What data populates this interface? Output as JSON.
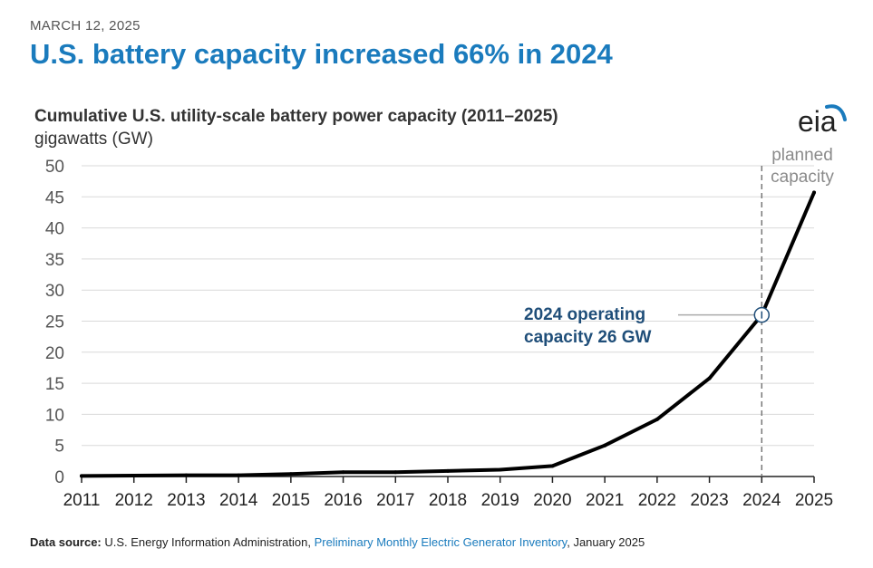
{
  "header": {
    "date": "MARCH 12, 2025",
    "headline": "U.S. battery capacity increased 66% in 2024"
  },
  "logo": {
    "text": "eia",
    "color": "#1a7bbd"
  },
  "chart_data": {
    "type": "line",
    "title": "Cumulative U.S. utility-scale battery power capacity (2011–2025)",
    "ylabel": "gigawatts (GW)",
    "xlabel": "",
    "x": [
      2011,
      2012,
      2013,
      2014,
      2015,
      2016,
      2017,
      2018,
      2019,
      2020,
      2021,
      2022,
      2023,
      2024,
      2025
    ],
    "series": [
      {
        "name": "Cumulative battery capacity",
        "values": [
          0.1,
          0.15,
          0.2,
          0.2,
          0.4,
          0.7,
          0.7,
          0.9,
          1.1,
          1.7,
          5,
          9.2,
          15.8,
          26,
          45.7
        ],
        "color": "#000000"
      }
    ],
    "ylim": [
      0,
      50
    ],
    "yticks": [
      0,
      5,
      10,
      15,
      20,
      25,
      30,
      35,
      40,
      45,
      50
    ],
    "grid": true,
    "divider": {
      "x": 2024,
      "label_line1": "planned",
      "label_line2": "capacity"
    },
    "annotation": {
      "x": 2024,
      "y": 26,
      "line1": "2024 operating",
      "line2": "capacity 26 GW",
      "color": "#1f4e79"
    }
  },
  "footer": {
    "label": "Data source:",
    "source": " U.S. Energy Information Administration, ",
    "link": "Preliminary Monthly Electric Generator Inventory",
    "suffix": ", January 2025"
  }
}
